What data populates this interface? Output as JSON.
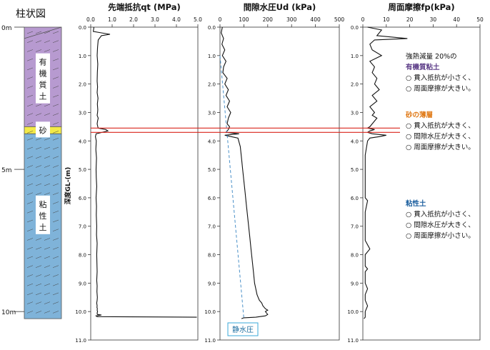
{
  "column": {
    "title": "柱状図",
    "depth_labels": [
      "0m",
      "5m",
      "10m"
    ],
    "layers": [
      {
        "name": "有機質土",
        "label": "有機質土",
        "from": 0.0,
        "to": 3.5,
        "color": "#b79ad0"
      },
      {
        "name": "砂",
        "label": "砂",
        "from": 3.5,
        "to": 3.75,
        "color": "#f3ea48"
      },
      {
        "name": "粘性土",
        "label": "粘性土",
        "from": 3.75,
        "to": 10.25,
        "color": "#7fb3d9"
      }
    ]
  },
  "depth_axis": {
    "label": "深度GL-(m)",
    "ticks": [
      "0.0",
      "1.0",
      "2.0",
      "3.0",
      "4.0",
      "5.0",
      "6.0",
      "7.0",
      "8.0",
      "9.0",
      "10.0",
      "11.0"
    ],
    "range": [
      0,
      11
    ]
  },
  "highlight_depths": [
    3.55,
    3.7
  ],
  "highlight_color": "#d9241c",
  "chart_data": [
    {
      "type": "line",
      "title": "先端抵抗qt (MPa)",
      "xlabel": "",
      "ylabel": "深度GL-(m)",
      "xlim": [
        0,
        5
      ],
      "ylim": [
        11,
        0
      ],
      "xticks": [
        "0.0",
        "1.0",
        "2.0",
        "3.0",
        "4.0",
        "5.0"
      ],
      "series": [
        {
          "x": [
            0.15,
            0.12,
            0.5,
            0.9,
            0.5,
            0.35,
            0.32,
            0.3,
            0.33,
            0.31,
            0.3,
            0.32,
            0.3,
            0.34,
            0.31,
            0.33,
            0.32,
            0.3,
            0.35,
            0.32,
            0.3,
            0.33,
            0.35,
            0.7,
            0.8,
            0.25,
            0.22,
            0.26,
            0.24,
            0.27,
            0.25,
            0.26,
            0.28,
            0.25,
            0.27,
            0.26,
            0.28,
            0.27,
            0.3,
            0.28,
            0.29,
            0.3,
            0.28,
            0.3,
            0.29,
            0.31,
            0.3,
            0.28,
            0.3,
            0.29,
            0.31,
            0.3,
            0.32,
            0.3,
            0.31,
            0.5,
            0.25,
            0.3,
            4.95
          ],
          "y": [
            0.0,
            0.15,
            0.2,
            0.25,
            0.3,
            0.45,
            0.7,
            1.0,
            1.3,
            1.6,
            1.9,
            2.1,
            2.3,
            2.5,
            2.7,
            2.9,
            3.0,
            3.1,
            3.2,
            3.3,
            3.4,
            3.5,
            3.55,
            3.6,
            3.65,
            3.75,
            3.85,
            4.0,
            4.3,
            4.6,
            5.0,
            5.3,
            5.6,
            6.0,
            6.3,
            6.6,
            7.0,
            7.3,
            7.6,
            8.0,
            8.3,
            8.6,
            8.9,
            9.1,
            9.3,
            9.5,
            9.6,
            9.7,
            9.8,
            9.85,
            9.9,
            9.95,
            10.0,
            10.05,
            10.1,
            10.12,
            10.15,
            10.18,
            10.2
          ]
        }
      ]
    },
    {
      "type": "line",
      "title": "間隙水圧Ud (kPa)",
      "xlabel": "",
      "ylabel": "",
      "xlim": [
        0,
        500
      ],
      "ylim": [
        11,
        0
      ],
      "xticks": [
        "0",
        "100",
        "200",
        "300",
        "400",
        "500"
      ],
      "series": [
        {
          "x": [
            10,
            5,
            15,
            8,
            20,
            10,
            25,
            15,
            12,
            30,
            20,
            35,
            25,
            40,
            30,
            45,
            35,
            30,
            40,
            35,
            30,
            25,
            80,
            20,
            75,
            85,
            90,
            95,
            100,
            105,
            110,
            115,
            120,
            125,
            130,
            135,
            140,
            145,
            150,
            155,
            160,
            165,
            175,
            180,
            185,
            190,
            200,
            190,
            195,
            200,
            190,
            150,
            100,
            90
          ],
          "y": [
            0.0,
            0.2,
            0.4,
            0.6,
            0.8,
            1.0,
            1.2,
            1.4,
            1.6,
            1.8,
            2.0,
            2.2,
            2.4,
            2.6,
            2.8,
            3.0,
            3.2,
            3.4,
            3.5,
            3.6,
            3.65,
            3.7,
            3.75,
            3.8,
            3.9,
            4.2,
            4.6,
            5.0,
            5.4,
            5.8,
            6.2,
            6.6,
            7.0,
            7.4,
            7.8,
            8.2,
            8.6,
            9.0,
            9.2,
            9.4,
            9.5,
            9.6,
            9.7,
            9.8,
            9.85,
            9.9,
            9.95,
            10.0,
            10.05,
            10.1,
            10.15,
            10.2,
            10.22,
            10.25
          ]
        },
        {
          "x": [
            0,
            100
          ],
          "y": [
            1.0,
            10.25
          ]
        }
      ],
      "annotation": "静水圧"
    },
    {
      "type": "line",
      "title": "周面摩擦fp(kPa)",
      "xlabel": "",
      "ylabel": "",
      "xlim": [
        0,
        50
      ],
      "ylim": [
        11,
        0
      ],
      "xticks": [
        "0",
        "10",
        "20",
        "30",
        "40",
        "50"
      ],
      "series": [
        {
          "x": [
            2,
            8,
            6,
            19,
            5,
            3,
            4,
            8,
            3,
            5,
            4,
            6,
            5,
            7,
            4,
            6,
            3,
            5,
            4,
            6,
            5,
            4,
            3,
            2,
            5,
            3,
            2,
            4,
            10,
            7,
            3,
            2,
            1,
            1,
            1,
            1,
            1,
            1,
            2,
            1,
            1,
            1,
            3,
            1,
            1,
            1,
            2,
            1,
            1,
            1,
            2,
            1,
            1,
            1,
            2,
            1,
            1,
            1,
            0.5
          ],
          "y": [
            0.0,
            0.1,
            0.3,
            0.4,
            0.45,
            0.6,
            0.8,
            1.0,
            1.2,
            1.4,
            1.6,
            1.8,
            2.0,
            2.2,
            2.4,
            2.6,
            2.8,
            3.0,
            3.1,
            3.2,
            3.3,
            3.4,
            3.5,
            3.55,
            3.6,
            3.65,
            3.7,
            3.75,
            3.8,
            3.85,
            3.9,
            4.0,
            4.5,
            5.0,
            5.1,
            5.2,
            5.5,
            6.0,
            6.1,
            6.5,
            7.0,
            7.5,
            7.8,
            8.0,
            8.2,
            8.4,
            8.5,
            8.6,
            8.8,
            9.0,
            9.2,
            9.4,
            9.5,
            9.6,
            9.8,
            10.0,
            10.1,
            10.2,
            10.25
          ]
        }
      ]
    }
  ],
  "annotations": {
    "organic": {
      "intro": "強熱減量 20%の",
      "heading": "有機質粘土",
      "lines": [
        "○ 貫入抵抗が小さく、",
        "○ 周面摩擦が大きい。"
      ]
    },
    "sand": {
      "heading": "砂の薄層",
      "lines": [
        "○ 貫入抵抗が大きく、",
        "○ 間隙水圧が大きく、",
        "○ 周面摩擦が大きい。"
      ]
    },
    "clay": {
      "heading": "粘性土",
      "lines": [
        "○ 貫入抵抗が小さく、",
        "○ 間隙水圧が大きく、",
        "○ 周面摩擦が小さい。"
      ]
    }
  },
  "colors": {
    "organic_heading": "#5b3b87",
    "sand_heading": "#e07a17",
    "clay_heading": "#1c5f9e",
    "hydro_line": "#4a90c8",
    "hydro_box": "#3aa8d8"
  }
}
